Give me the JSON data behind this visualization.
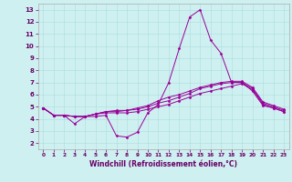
{
  "xlabel": "Windchill (Refroidissement éolien,°C)",
  "ylabel": "",
  "bg_color": "#cff0f0",
  "line_color": "#990099",
  "grid_color": "#aadddd",
  "xlim": [
    -0.5,
    23.5
  ],
  "ylim": [
    1.5,
    13.5
  ],
  "xticks": [
    0,
    1,
    2,
    3,
    4,
    5,
    6,
    7,
    8,
    9,
    10,
    11,
    12,
    13,
    14,
    15,
    16,
    17,
    18,
    19,
    20,
    21,
    22,
    23
  ],
  "yticks": [
    2,
    3,
    4,
    5,
    6,
    7,
    8,
    9,
    10,
    11,
    12,
    13
  ],
  "lines": [
    [
      4.9,
      4.3,
      4.3,
      3.6,
      4.2,
      4.2,
      4.3,
      2.6,
      2.5,
      2.9,
      4.5,
      5.2,
      7.0,
      9.8,
      12.4,
      13.0,
      10.5,
      9.4,
      7.0,
      7.0,
      6.3,
      5.1,
      4.9,
      4.6
    ],
    [
      4.9,
      4.3,
      4.3,
      4.2,
      4.2,
      4.4,
      4.5,
      4.5,
      4.5,
      4.6,
      4.8,
      5.0,
      5.2,
      5.5,
      5.8,
      6.1,
      6.3,
      6.5,
      6.7,
      6.9,
      6.4,
      5.2,
      4.9,
      4.6
    ],
    [
      4.9,
      4.3,
      4.3,
      4.2,
      4.2,
      4.4,
      4.6,
      4.6,
      4.7,
      4.8,
      5.0,
      5.3,
      5.5,
      5.8,
      6.1,
      6.5,
      6.7,
      6.9,
      7.0,
      7.0,
      6.5,
      5.3,
      5.0,
      4.7
    ],
    [
      4.9,
      4.3,
      4.3,
      4.2,
      4.2,
      4.4,
      4.6,
      4.7,
      4.7,
      4.9,
      5.1,
      5.5,
      5.8,
      6.0,
      6.3,
      6.6,
      6.8,
      7.0,
      7.1,
      7.1,
      6.6,
      5.4,
      5.1,
      4.8
    ]
  ],
  "xlabel_color": "#660066",
  "tick_color": "#660066",
  "xlabel_fontsize": 5.5,
  "tick_fontsize": 5.0
}
